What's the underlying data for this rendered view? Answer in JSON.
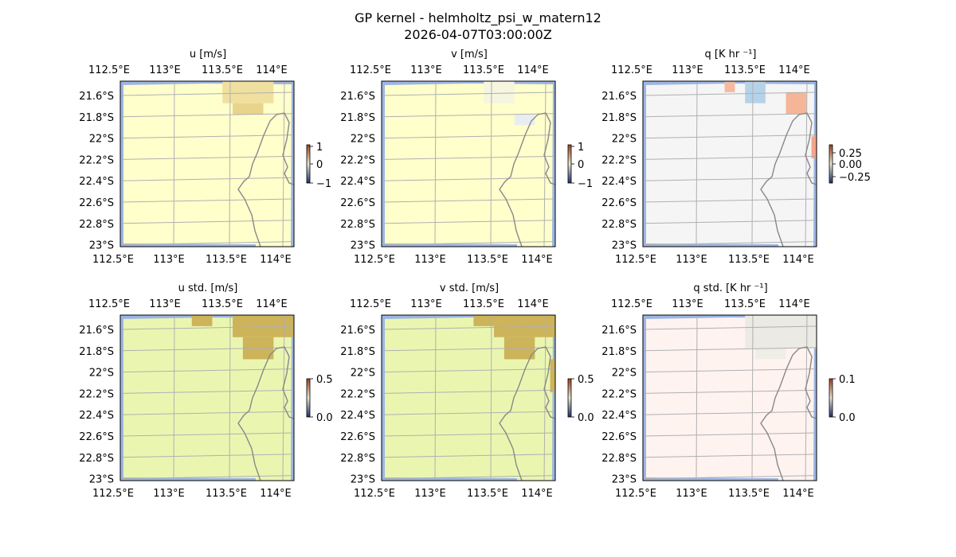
{
  "figure": {
    "title": "GP kernel - helmholtz_psi_w_matern12",
    "subtitle": "2026-04-07T03:00:00Z",
    "colors": {
      "land_yellow": "#ffffcc",
      "land_green": "#eaf6b0",
      "land_rose": "#fff3f0",
      "land_grey": "#f5f5f5",
      "ocean": "#9db6e3",
      "coast": "#888888",
      "grid": "#b0b0b0"
    }
  },
  "chart_data": [
    {
      "type": "heatmap",
      "title": "u [m/s]",
      "lon_ticks": [
        "112.5°E",
        "113°E",
        "113.5°E",
        "114°E"
      ],
      "lat_ticks": [
        "21.6°S",
        "21.8°S",
        "22°S",
        "22.2°S",
        "22.4°S",
        "22.6°S",
        "22.8°S",
        "23°S"
      ],
      "lon_range": [
        112.5,
        114.2
      ],
      "lat_range": [
        -23.0,
        -21.5
      ],
      "colorbar": {
        "ticks": [
          "1",
          "0",
          "−1"
        ],
        "range": [
          -1,
          1
        ]
      },
      "base_color": "#ffffcc",
      "patches": [
        {
          "lon": [
            113.5,
            114.0
          ],
          "lat": [
            -21.7,
            -21.5
          ],
          "color": "#f0e0a0",
          "value": 0.3
        },
        {
          "lon": [
            113.6,
            113.9
          ],
          "lat": [
            -21.8,
            -21.7
          ],
          "color": "#e8d48a",
          "value": 0.5
        }
      ]
    },
    {
      "type": "heatmap",
      "title": "v [m/s]",
      "lon_ticks": [
        "112.5°E",
        "113°E",
        "113.5°E",
        "114°E"
      ],
      "lat_ticks": [
        "21.6°S",
        "21.8°S",
        "22°S",
        "22.2°S",
        "22.4°S",
        "22.6°S",
        "22.8°S",
        "23°S"
      ],
      "lon_range": [
        112.5,
        114.2
      ],
      "lat_range": [
        -23.0,
        -21.5
      ],
      "colorbar": {
        "ticks": [
          "1",
          "0",
          "−1"
        ],
        "range": [
          -1,
          1
        ]
      },
      "base_color": "#ffffcc",
      "patches": [
        {
          "lon": [
            113.5,
            113.8
          ],
          "lat": [
            -21.7,
            -21.5
          ],
          "color": "#f5f5e0",
          "value": 0.05
        },
        {
          "lon": [
            113.8,
            114.0
          ],
          "lat": [
            -21.9,
            -21.8
          ],
          "color": "#e8eef0",
          "value": -0.05
        }
      ]
    },
    {
      "type": "heatmap",
      "title": "q [K hr ⁻¹]",
      "lon_ticks": [
        "112.5°E",
        "113°E",
        "113.5°E",
        "114°E"
      ],
      "lat_ticks": [
        "21.6°S",
        "21.8°S",
        "22°S",
        "22.2°S",
        "22.4°S",
        "22.6°S",
        "22.8°S",
        "23°S"
      ],
      "lon_range": [
        112.5,
        114.2
      ],
      "lat_range": [
        -23.0,
        -21.5
      ],
      "colorbar": {
        "ticks": [
          "0.25",
          "0.00",
          "−0.25"
        ],
        "range": [
          -0.3,
          0.3
        ]
      },
      "base_color": "#f5f5f5",
      "patches": [
        {
          "lon": [
            113.3,
            113.4
          ],
          "lat": [
            -21.6,
            -21.5
          ],
          "color": "#f4b9a0",
          "value": 0.2
        },
        {
          "lon": [
            113.5,
            113.7
          ],
          "lat": [
            -21.7,
            -21.5
          ],
          "color": "#b5d2e8",
          "value": -0.2
        },
        {
          "lon": [
            113.9,
            114.1
          ],
          "lat": [
            -21.8,
            -21.6
          ],
          "color": "#f6b598",
          "value": 0.25
        },
        {
          "lon": [
            114.15,
            114.2
          ],
          "lat": [
            -22.2,
            -22.0
          ],
          "color": "#f4a58a",
          "value": 0.3
        }
      ]
    },
    {
      "type": "heatmap",
      "title": "u std. [m/s]",
      "lon_ticks": [
        "112.5°E",
        "113°E",
        "113.5°E",
        "114°E"
      ],
      "lat_ticks": [
        "21.6°S",
        "21.8°S",
        "22°S",
        "22.2°S",
        "22.4°S",
        "22.6°S",
        "22.8°S",
        "23°S"
      ],
      "lon_range": [
        112.5,
        114.2
      ],
      "lat_range": [
        -23.0,
        -21.5
      ],
      "colorbar": {
        "ticks": [
          "0.5",
          "0.0"
        ],
        "range": [
          0,
          0.6
        ]
      },
      "base_color": "#eaf6b0",
      "patches": [
        {
          "lon": [
            113.2,
            113.4
          ],
          "lat": [
            -21.6,
            -21.5
          ],
          "color": "#cdb35a",
          "value": 0.55
        },
        {
          "lon": [
            113.6,
            114.2
          ],
          "lat": [
            -21.7,
            -21.5
          ],
          "color": "#cdb35a",
          "value": 0.55
        },
        {
          "lon": [
            113.7,
            114.0
          ],
          "lat": [
            -21.9,
            -21.7
          ],
          "color": "#cdb35a",
          "value": 0.55
        }
      ]
    },
    {
      "type": "heatmap",
      "title": "v std. [m/s]",
      "lon_ticks": [
        "112.5°E",
        "113°E",
        "113.5°E",
        "114°E"
      ],
      "lat_ticks": [
        "21.6°S",
        "21.8°S",
        "22°S",
        "22.2°S",
        "22.4°S",
        "22.6°S",
        "22.8°S",
        "23°S"
      ],
      "lon_range": [
        112.5,
        114.2
      ],
      "lat_range": [
        -23.0,
        -21.5
      ],
      "colorbar": {
        "ticks": [
          "0.5",
          "0.0"
        ],
        "range": [
          0,
          0.6
        ]
      },
      "base_color": "#eaf6b0",
      "patches": [
        {
          "lon": [
            113.4,
            113.6
          ],
          "lat": [
            -21.6,
            -21.5
          ],
          "color": "#cdb35a",
          "value": 0.55
        },
        {
          "lon": [
            113.6,
            114.2
          ],
          "lat": [
            -21.7,
            -21.5
          ],
          "color": "#cdb35a",
          "value": 0.55
        },
        {
          "lon": [
            113.7,
            114.0
          ],
          "lat": [
            -21.9,
            -21.7
          ],
          "color": "#cdb35a",
          "value": 0.55
        },
        {
          "lon": [
            114.15,
            114.2
          ],
          "lat": [
            -22.2,
            -21.9
          ],
          "color": "#cdb35a",
          "value": 0.55
        }
      ]
    },
    {
      "type": "heatmap",
      "title": "q std. [K hr ⁻¹]",
      "lon_ticks": [
        "112.5°E",
        "113°E",
        "113.5°E",
        "114°E"
      ],
      "lat_ticks": [
        "21.6°S",
        "21.8°S",
        "22°S",
        "22.2°S",
        "22.4°S",
        "22.6°S",
        "22.8°S",
        "23°S"
      ],
      "lon_range": [
        112.5,
        114.2
      ],
      "lat_range": [
        -23.0,
        -21.5
      ],
      "colorbar": {
        "ticks": [
          "0.1",
          "0.0"
        ],
        "range": [
          0,
          0.12
        ]
      },
      "base_color": "#fff3f0",
      "patches": [
        {
          "lon": [
            113.5,
            114.2
          ],
          "lat": [
            -21.8,
            -21.5
          ],
          "color": "#ebebe3",
          "value": 0.03
        },
        {
          "lon": [
            113.6,
            113.9
          ],
          "lat": [
            -21.9,
            -21.8
          ],
          "color": "#eeeee6",
          "value": 0.02
        }
      ]
    }
  ]
}
